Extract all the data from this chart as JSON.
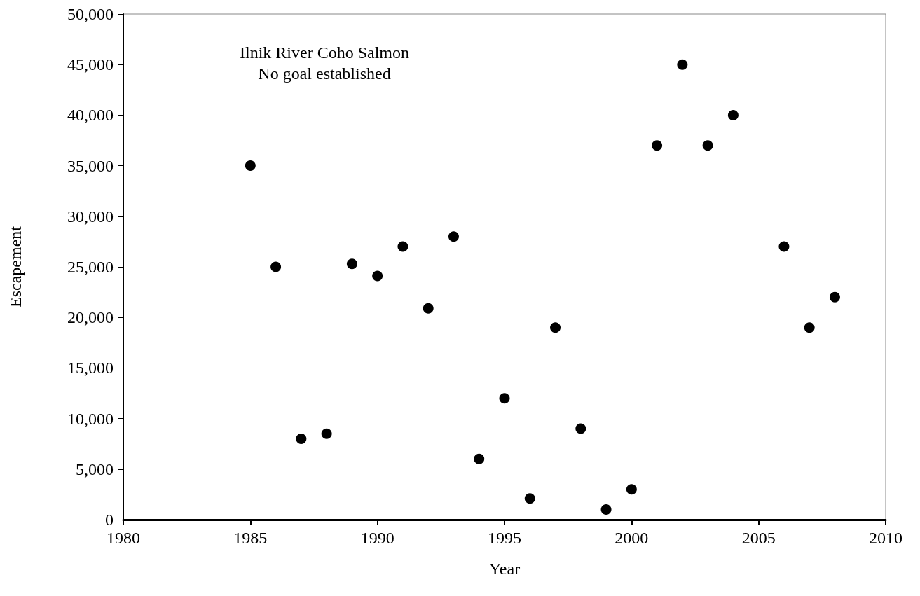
{
  "chart_data": {
    "type": "scatter",
    "title": "Ilnik River Coho Salmon",
    "subtitle": "No goal established",
    "xlabel": "Year",
    "ylabel": "Escapement",
    "x": [
      1985,
      1986,
      1987,
      1988,
      1989,
      1990,
      1991,
      1992,
      1993,
      1994,
      1995,
      1996,
      1997,
      1998,
      1999,
      2000,
      2001,
      2002,
      2003,
      2004,
      2006,
      2007,
      2008
    ],
    "values": [
      35000,
      25000,
      8000,
      8500,
      25300,
      24100,
      27000,
      20900,
      28000,
      6000,
      12000,
      2100,
      19000,
      9000,
      1000,
      3000,
      37000,
      45000,
      37000,
      40000,
      27000,
      19000,
      22000
    ],
    "color": "#000000",
    "marker": "circle",
    "grid": false,
    "xlim": [
      1980,
      2010
    ],
    "xticks": [
      1980,
      1985,
      1990,
      1995,
      2000,
      2005,
      2010
    ],
    "ylim": [
      0,
      50000
    ],
    "yticks": [
      {
        "value": 0,
        "label": "0"
      },
      {
        "value": 5000,
        "label": "5,000"
      },
      {
        "value": 10000,
        "label": "10,000"
      },
      {
        "value": 15000,
        "label": "15,000"
      },
      {
        "value": 20000,
        "label": "20,000"
      },
      {
        "value": 25000,
        "label": "25,000"
      },
      {
        "value": 30000,
        "label": "30,000"
      },
      {
        "value": 35000,
        "label": "35,000"
      },
      {
        "value": 40000,
        "label": "40,000"
      },
      {
        "value": 45000,
        "label": "45,000"
      },
      {
        "value": 50000,
        "label": "50,000"
      }
    ]
  }
}
